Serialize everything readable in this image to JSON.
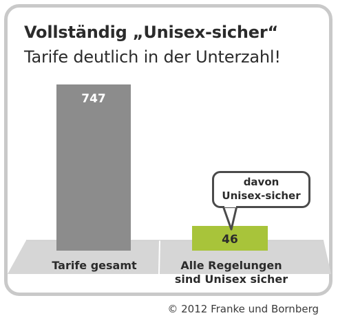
{
  "title": "Vollständig „Unisex-sicher“",
  "subtitle": "Tarife deutlich in der Unterzahl!",
  "callout": {
    "line1": "davon",
    "line2": "Unisex-sicher"
  },
  "copyright": "© 2012 Franke und Bornberg",
  "colors": {
    "frame": "#c9c9c9",
    "bar_total": "#8c8c8c",
    "bar_unisex": "#a8c43a",
    "floor": "#d6d6d6",
    "value_label_total": "#ffffff",
    "value_label_unisex": "#2b2b2b"
  },
  "chart_data": {
    "type": "bar",
    "categories": [
      "Tarife gesamt",
      "Alle Regelungen sind Unisex sicher"
    ],
    "category_label_lines": [
      [
        "Tarife gesamt"
      ],
      [
        "Alle Regelungen",
        "sind Unisex sicher"
      ]
    ],
    "values": [
      747,
      46
    ],
    "data_labels": [
      "747",
      "46"
    ],
    "title": "Vollständig „Unisex-sicher“",
    "subtitle": "Tarife deutlich in der Unterzahl!",
    "xlabel": "",
    "ylabel": "",
    "grid": false,
    "legend": "none"
  }
}
